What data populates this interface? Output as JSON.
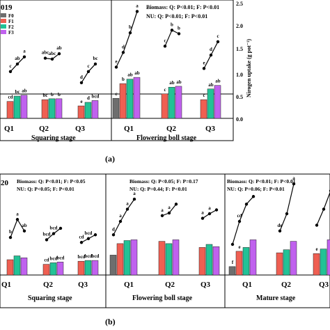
{
  "figure": {
    "panel_a_label": "(a)",
    "panel_b_label": "(b)",
    "colors": {
      "F0": "#6e6e6e",
      "F1": "#ef5f52",
      "F2": "#22c296",
      "F3": "#c061ee",
      "line": "#000000"
    }
  },
  "chart_data": [
    {
      "type": "bar",
      "panel": "a",
      "year_label_fragment": "019",
      "legend": [
        "F0",
        "F1",
        "F2",
        "F3"
      ],
      "stats": {
        "biomass": "Biomass: Q: P<0.01; F: P<0.01",
        "nu": "NU: Q: P<0.01; F: P<0.01"
      },
      "ylabel": "Nirogen uptake (g pot⁻¹)",
      "ylim": [
        0,
        3.0
      ],
      "yticks": [
        "0.0",
        "0.5",
        "1.0",
        "1.5",
        "2.0",
        "2.5",
        "3.0"
      ],
      "groups": [
        {
          "stage": "Squaring stage",
          "subgroups": [
            {
              "name": "Q1",
              "biomass": [
                null,
                0.38,
                0.5,
                0.52
              ],
              "biomass_letters": [
                "",
                "cd",
                "bc",
                "ab"
              ],
              "nu": [
                null,
                1.05,
                1.22,
                1.38
              ],
              "nu_letters": [
                "",
                "c",
                "ab",
                "a"
              ]
            },
            {
              "name": "Q2",
              "biomass": [
                null,
                0.42,
                0.44,
                0.44
              ],
              "biomass_letters": [
                "",
                "bc",
                "b",
                "b"
              ],
              "nu": [
                null,
                1.35,
                1.33,
                1.45
              ],
              "nu_letters": [
                "",
                "abc",
                "abc",
                "ab"
              ]
            },
            {
              "name": "Q3",
              "biomass": [
                null,
                0.28,
                0.36,
                0.4
              ],
              "biomass_letters": [
                "",
                "e",
                "d",
                "bcd"
              ],
              "nu": [
                null,
                0.8,
                1.05,
                1.22
              ],
              "nu_letters": [
                "",
                "d",
                "c",
                "bc"
              ]
            }
          ]
        },
        {
          "stage": "Flowering boll stage",
          "subgroups": [
            {
              "name": "Q1",
              "biomass": [
                0.45,
                0.78,
                0.88,
                0.92
              ],
              "biomass_letters": [
                "c",
                "b",
                "ab",
                "ab"
              ],
              "nu": [
                1.15,
                1.48,
                1.92,
                2.4
              ],
              "nu_letters": [
                "e",
                "d",
                "b",
                "a"
              ]
            },
            {
              "name": "Q2",
              "biomass": [
                null,
                0.55,
                0.7,
                0.72
              ],
              "biomass_letters": [
                "",
                "c",
                "ab",
                "ab"
              ],
              "nu": [
                null,
                1.62,
                1.98,
                1.9
              ],
              "nu_letters": [
                "",
                "c",
                "b",
                "b"
              ]
            },
            {
              "name": "Q3",
              "biomass": [
                null,
                0.42,
                0.66,
                0.74
              ],
              "biomass_letters": [
                "",
                "c",
                "ab",
                "ab"
              ],
              "nu": [
                null,
                1.12,
                1.42,
                1.72
              ],
              "nu_letters": [
                "",
                "e",
                "d",
                "c"
              ]
            }
          ]
        }
      ]
    },
    {
      "type": "bar",
      "panel": "b",
      "year_label_fragment": "20",
      "legend": [
        "F0",
        "F1",
        "F2",
        "F3"
      ],
      "stats": [
        {
          "biomass": "Biomass: Q: P<0.01; F: P<0.05",
          "nu": "NU: Q: P<0.05; F: P<0.01"
        },
        {
          "biomass": "Biomass: Q: P<0.05; F: P=0.17",
          "nu": "NU: Q: P=0.44; F: P<0.01"
        },
        {
          "biomass": "Biomass: Q: P<0.01; F: P<0.01",
          "nu": "NU: Q: P=0.06; F: P<0.01"
        }
      ],
      "ylim": [
        0,
        3.0
      ],
      "groups": [
        {
          "stage": "Squaring stage",
          "subgroups": [
            {
              "name": "Q1",
              "biomass": [
                null,
                0.4,
                0.5,
                0.45
              ],
              "biomass_letters": [
                "",
                "",
                "",
                ""
              ],
              "nu": [
                null,
                0.98,
                1.45,
                1.15
              ],
              "nu_letters": [
                "",
                "b",
                "a",
                "ab"
              ]
            },
            {
              "name": "Q2",
              "biomass": [
                null,
                0.28,
                0.32,
                0.34
              ],
              "biomass_letters": [
                "",
                "cd",
                "bcd",
                "bcd"
              ],
              "nu": [
                null,
                0.92,
                1.08,
                1.22
              ],
              "nu_letters": [
                "",
                "bcd",
                "bcd",
                ""
              ]
            },
            {
              "name": "Q3",
              "biomass": [
                null,
                0.36,
                0.38,
                0.38
              ],
              "biomass_letters": [
                "",
                "bcd",
                "bcd",
                "bcd"
              ],
              "nu": [
                null,
                0.85,
                0.95,
                1.05
              ],
              "nu_letters": [
                "",
                "cd",
                "bcd",
                ""
              ]
            }
          ]
        },
        {
          "stage": "Flowering boll stage",
          "subgroups": [
            {
              "name": "Q1",
              "biomass": [
                0.52,
                0.82,
                0.9,
                0.92
              ],
              "biomass_letters": [
                "",
                "",
                "",
                ""
              ],
              "nu": [
                1.05,
                1.4,
                1.72,
                1.98
              ],
              "nu_letters": [
                "d",
                "a",
                "a",
                "a"
              ]
            },
            {
              "name": "Q2",
              "biomass": [
                null,
                0.88,
                0.82,
                0.92
              ],
              "biomass_letters": [
                "",
                "",
                "",
                ""
              ],
              "nu": [
                null,
                1.55,
                1.62,
                1.85
              ],
              "nu_letters": [
                "",
                "a",
                "a",
                ""
              ]
            },
            {
              "name": "Q3",
              "biomass": [
                null,
                0.72,
                0.8,
                0.74
              ],
              "biomass_letters": [
                "",
                "",
                "",
                ""
              ],
              "nu": [
                null,
                1.48,
                1.6,
                1.7
              ],
              "nu_letters": [
                "",
                "a",
                "a",
                ""
              ]
            }
          ]
        },
        {
          "stage": "Mature stage",
          "subgroups": [
            {
              "name": "Q1",
              "biomass": [
                0.22,
                0.62,
                0.72,
                0.92
              ],
              "biomass_letters": [
                "f",
                "e",
                "",
                ""
              ],
              "nu": [
                0.8,
                1.4,
                1.85,
                2.05
              ],
              "nu_letters": [
                "",
                "cd",
                "",
                ""
              ]
            },
            {
              "name": "Q2",
              "biomass": [
                null,
                0.58,
                0.66,
                0.88
              ],
              "biomass_letters": [
                "",
                "",
                "",
                ""
              ],
              "nu": [
                null,
                1.15,
                1.6,
                2.38
              ],
              "nu_letters": [
                "",
                "de",
                "",
                "a"
              ]
            },
            {
              "name": "Q3",
              "biomass": [
                null,
                0.56,
                0.68,
                0.92
              ],
              "biomass_letters": [
                "",
                "e",
                "",
                ""
              ],
              "nu": [
                null,
                1.3,
                1.72,
                2.2
              ],
              "nu_letters": [
                "",
                "",
                "",
                ""
              ]
            }
          ]
        }
      ]
    }
  ],
  "axes_text": {
    "a_qticks": [
      "Q1",
      "Q2",
      "Q3",
      "Q1",
      "Q2",
      "Q3"
    ],
    "a_stages": [
      "Squaring stage",
      "Flowering boll stage"
    ],
    "b_qticks": [
      "Q1",
      "Q2",
      "Q3",
      "Q1",
      "Q2",
      "Q3",
      "Q1",
      "Q2",
      "Q3"
    ],
    "b_stages": [
      "Squaring stage",
      "Flowering boll stage",
      "Mature stage"
    ]
  }
}
